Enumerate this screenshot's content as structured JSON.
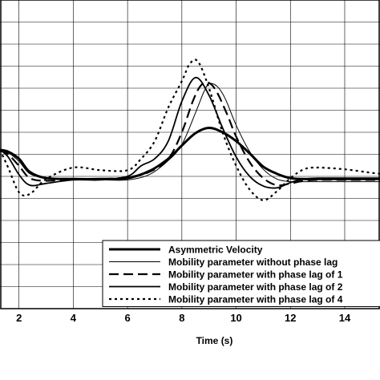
{
  "chart_data": {
    "type": "line",
    "xlabel": "Time (s)",
    "ylabel": "",
    "title": "",
    "xlim": [
      1.3,
      15.3
    ],
    "ylim": [
      -1.5,
      2.0
    ],
    "x_ticks": [
      2,
      4,
      6,
      8,
      10,
      12,
      14
    ],
    "grid": true,
    "legend_position": "bottom-right",
    "series": [
      {
        "name": "Asymmetric Velocity",
        "style": "thick-solid",
        "x": [
          1.3,
          1.6,
          2.0,
          2.4,
          3.0,
          4.0,
          5.0,
          6.0,
          6.8,
          7.5,
          8.0,
          8.5,
          9.0,
          9.5,
          10.0,
          10.5,
          11.0,
          11.5,
          12.0,
          12.5,
          13.0,
          14.0,
          15.0,
          15.3
        ],
        "y": [
          0.3,
          0.28,
          0.2,
          0.05,
          -0.02,
          -0.03,
          -0.03,
          -0.02,
          0.06,
          0.2,
          0.35,
          0.49,
          0.55,
          0.5,
          0.4,
          0.26,
          0.11,
          0.03,
          -0.02,
          -0.03,
          -0.03,
          -0.03,
          -0.03,
          -0.03
        ]
      },
      {
        "name": "Mobility parameter without phase lag",
        "style": "thin-solid",
        "x": [
          1.3,
          1.6,
          2.0,
          2.4,
          3.0,
          4.0,
          5.0,
          6.0,
          6.8,
          7.5,
          8.0,
          8.5,
          8.8,
          9.0,
          9.3,
          9.6,
          10.0,
          10.5,
          11.0,
          11.5,
          12.0,
          12.5,
          13.0,
          14.0,
          15.0,
          15.3
        ],
        "y": [
          0.3,
          0.27,
          0.17,
          0.03,
          -0.02,
          -0.04,
          -0.04,
          -0.04,
          0.02,
          0.18,
          0.36,
          0.72,
          0.95,
          1.05,
          1.02,
          0.88,
          0.58,
          0.28,
          0.08,
          -0.03,
          -0.06,
          -0.06,
          -0.06,
          -0.06,
          -0.06,
          -0.06
        ]
      },
      {
        "name": "Mobility parameter with phase lag of 1",
        "style": "long-dash",
        "x": [
          1.3,
          1.6,
          2.0,
          2.4,
          3.0,
          4.0,
          5.0,
          6.0,
          6.8,
          7.5,
          8.0,
          8.4,
          8.7,
          9.0,
          9.3,
          9.7,
          10.0,
          10.5,
          11.0,
          11.5,
          12.0,
          12.5,
          13.0,
          14.0,
          15.0,
          15.3
        ],
        "y": [
          0.3,
          0.25,
          0.12,
          -0.02,
          -0.05,
          -0.03,
          -0.03,
          -0.01,
          0.05,
          0.2,
          0.5,
          0.85,
          1.03,
          1.06,
          0.95,
          0.68,
          0.45,
          0.16,
          -0.02,
          -0.1,
          -0.08,
          -0.05,
          -0.04,
          -0.04,
          -0.04,
          -0.04
        ]
      },
      {
        "name": "Mobility parameter with phase lag of 2",
        "style": "medium-solid",
        "x": [
          1.3,
          1.6,
          2.0,
          2.4,
          3.0,
          4.0,
          5.0,
          6.0,
          6.5,
          7.0,
          7.5,
          8.0,
          8.5,
          9.0,
          9.5,
          10.0,
          10.5,
          11.0,
          11.5,
          12.0,
          12.5,
          13.0,
          14.0,
          15.0,
          15.3
        ],
        "y": [
          0.3,
          0.22,
          0.02,
          -0.1,
          -0.08,
          -0.04,
          -0.04,
          0.0,
          0.12,
          0.2,
          0.4,
          0.85,
          1.12,
          0.92,
          0.55,
          0.22,
          0.0,
          -0.11,
          -0.13,
          -0.07,
          -0.03,
          -0.02,
          -0.02,
          -0.02,
          -0.02
        ]
      },
      {
        "name": "Mobility parameter with phase lag of 4",
        "style": "dotted",
        "x": [
          1.3,
          1.6,
          2.0,
          2.4,
          3.0,
          4.0,
          5.0,
          6.0,
          6.5,
          7.0,
          7.5,
          8.0,
          8.3,
          8.6,
          9.0,
          9.5,
          10.0,
          10.5,
          11.0,
          11.5,
          12.0,
          12.5,
          13.0,
          14.0,
          15.0,
          15.3
        ],
        "y": [
          0.3,
          0.1,
          -0.18,
          -0.2,
          -0.03,
          0.1,
          0.07,
          0.07,
          0.2,
          0.4,
          0.78,
          1.08,
          1.28,
          1.3,
          1.0,
          0.5,
          0.12,
          -0.15,
          -0.27,
          -0.17,
          -0.02,
          0.08,
          0.1,
          0.08,
          0.04,
          0.03
        ]
      }
    ]
  }
}
